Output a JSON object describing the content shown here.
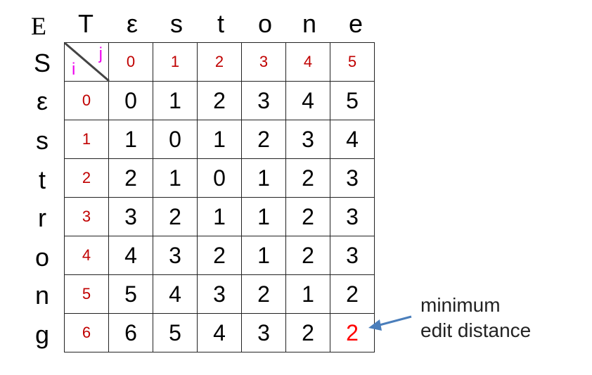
{
  "corner": {
    "source_label": "S",
    "target_label": "T",
    "extra_label": "E"
  },
  "target_chars": [
    "ε",
    "s",
    "t",
    "o",
    "n",
    "e"
  ],
  "source_chars": [
    "ε",
    "s",
    "t",
    "r",
    "o",
    "n",
    "g"
  ],
  "axis": {
    "j": "j",
    "i": "i"
  },
  "col_indices": [
    "0",
    "1",
    "2",
    "3",
    "4",
    "5"
  ],
  "row_indices": [
    "0",
    "1",
    "2",
    "3",
    "4",
    "5",
    "6"
  ],
  "matrix": [
    [
      "0",
      "1",
      "2",
      "3",
      "4",
      "5"
    ],
    [
      "1",
      "0",
      "1",
      "2",
      "3",
      "4"
    ],
    [
      "2",
      "1",
      "0",
      "1",
      "2",
      "3"
    ],
    [
      "3",
      "2",
      "1",
      "1",
      "2",
      "3"
    ],
    [
      "4",
      "3",
      "2",
      "1",
      "2",
      "3"
    ],
    [
      "5",
      "4",
      "3",
      "2",
      "1",
      "2"
    ],
    [
      "6",
      "5",
      "4",
      "3",
      "2",
      "2"
    ]
  ],
  "annotation": {
    "line1": "minimum",
    "line2": "edit distance"
  },
  "colors": {
    "index": "#c00000",
    "axis": "#ee00ee",
    "result": "#ff0000",
    "arrow": "#4a7ebb"
  }
}
